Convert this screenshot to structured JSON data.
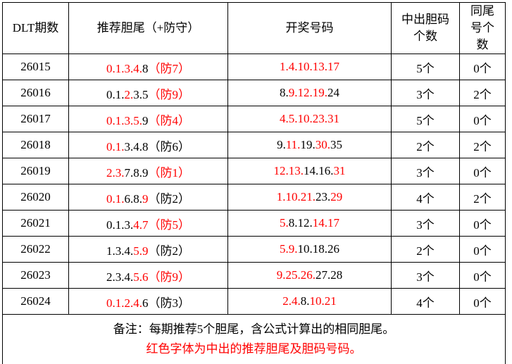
{
  "colors": {
    "hit": "#ff0000",
    "normal": "#000000"
  },
  "headers": [
    "DLT期数",
    "推荐胆尾（+防守）",
    "开奖号码",
    "中出胆码个数",
    "同尾号个数"
  ],
  "rows": [
    {
      "issue": "26015",
      "tail": [
        [
          "0.1.3.4.",
          1
        ],
        [
          "8",
          0
        ],
        [
          "（防7）",
          1
        ]
      ],
      "draw": [
        [
          "1.4.10.13.17",
          1
        ]
      ],
      "hits": "5个",
      "same": "0个"
    },
    {
      "issue": "26016",
      "tail": [
        [
          "0.1.",
          0
        ],
        [
          "2.",
          1
        ],
        [
          "3.5",
          0
        ],
        [
          "（防9）",
          1
        ]
      ],
      "draw": [
        [
          "8.",
          0
        ],
        [
          "9.12.19.",
          1
        ],
        [
          "24",
          0
        ]
      ],
      "hits": "3个",
      "same": "2个"
    },
    {
      "issue": "26017",
      "tail": [
        [
          "0.1.3.5.",
          1
        ],
        [
          "9",
          0
        ],
        [
          "（防4）",
          1
        ]
      ],
      "draw": [
        [
          "4.5.10.23.31",
          1
        ]
      ],
      "hits": "5个",
      "same": "0个"
    },
    {
      "issue": "26018",
      "tail": [
        [
          "0.1.",
          1
        ],
        [
          "3.4.8（防6）",
          0
        ]
      ],
      "draw": [
        [
          "9.",
          0
        ],
        [
          "11.",
          1
        ],
        [
          "19.",
          0
        ],
        [
          "30.",
          1
        ],
        [
          "35",
          0
        ]
      ],
      "hits": "2个",
      "same": "2个"
    },
    {
      "issue": "26019",
      "tail": [
        [
          "2.3.",
          1
        ],
        [
          "7.8.9",
          0
        ],
        [
          "（防1）",
          1
        ]
      ],
      "draw": [
        [
          "12.13.",
          1
        ],
        [
          "14.16.",
          0
        ],
        [
          "31",
          1
        ]
      ],
      "hits": "3个",
      "same": "0个"
    },
    {
      "issue": "26020",
      "tail": [
        [
          "0.1.",
          1
        ],
        [
          "6.8.",
          0
        ],
        [
          "9",
          1
        ],
        [
          "（防2）",
          0
        ]
      ],
      "draw": [
        [
          "1.10.21.",
          1
        ],
        [
          "23.",
          0
        ],
        [
          "29",
          1
        ]
      ],
      "hits": "4个",
      "same": "2个"
    },
    {
      "issue": "26021",
      "tail": [
        [
          "0.1.3.",
          0
        ],
        [
          "4.7（防5）",
          1
        ]
      ],
      "draw": [
        [
          "5.",
          1
        ],
        [
          "8.12.",
          0
        ],
        [
          "14.17",
          1
        ]
      ],
      "hits": "3个",
      "same": "0个"
    },
    {
      "issue": "26022",
      "tail": [
        [
          "1.3.4.",
          0
        ],
        [
          "5.9",
          1
        ],
        [
          "（防2）",
          0
        ]
      ],
      "draw": [
        [
          "5.9.",
          1
        ],
        [
          "10.18.26",
          0
        ]
      ],
      "hits": "2个",
      "same": "0个"
    },
    {
      "issue": "26023",
      "tail": [
        [
          "2.3.4.",
          0
        ],
        [
          "5.6（防9）",
          1
        ]
      ],
      "draw": [
        [
          "9.25.26.",
          1
        ],
        [
          "27.28",
          0
        ]
      ],
      "hits": "3个",
      "same": "0个"
    },
    {
      "issue": "26024",
      "tail": [
        [
          "0.1.2.4.",
          1
        ],
        [
          "6（防3）",
          0
        ]
      ],
      "draw": [
        [
          "2.4.",
          1
        ],
        [
          "8.",
          0
        ],
        [
          "10.21",
          1
        ]
      ],
      "hits": "4个",
      "same": "0个"
    }
  ],
  "note": {
    "line1": "备注：每期推荐5个胆尾，含公式计算出的相同胆尾。",
    "line2": "红色字体为中出的推荐胆尾及胆码号码。"
  }
}
